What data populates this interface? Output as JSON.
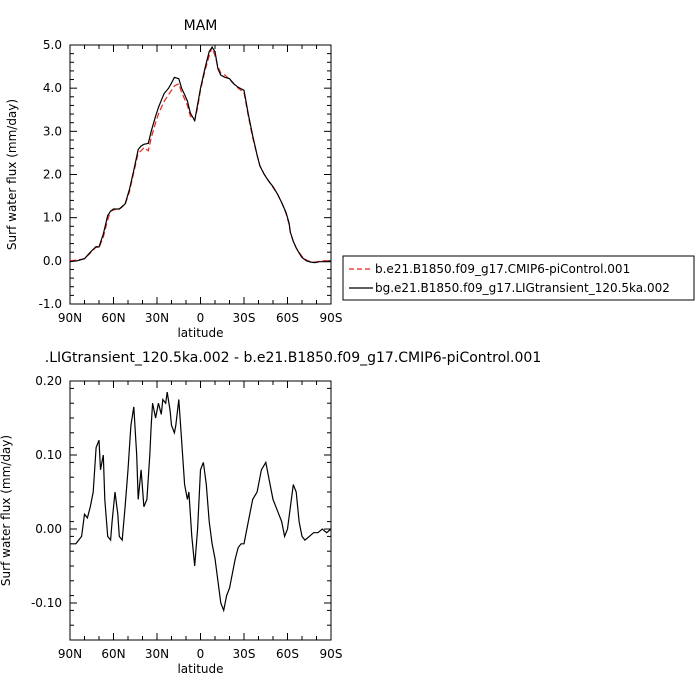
{
  "chart_data": [
    {
      "type": "line",
      "title": "MAM",
      "xlabel": "latitude",
      "ylabel": "Surf water flux (mm/day)",
      "xlim": [
        90,
        -90
      ],
      "ylim": [
        -1.0,
        5.0
      ],
      "xticks": [
        {
          "value": 90,
          "label": "90N"
        },
        {
          "value": 60,
          "label": "60N"
        },
        {
          "value": 30,
          "label": "30N"
        },
        {
          "value": 0,
          "label": "0"
        },
        {
          "value": -30,
          "label": "30S"
        },
        {
          "value": -60,
          "label": "60S"
        },
        {
          "value": -90,
          "label": "90S"
        }
      ],
      "yticks": [
        {
          "value": -1.0,
          "label": "-1.0"
        },
        {
          "value": 0.0,
          "label": "0.0"
        },
        {
          "value": 1.0,
          "label": "1.0"
        },
        {
          "value": 2.0,
          "label": "2.0"
        },
        {
          "value": 3.0,
          "label": "3.0"
        },
        {
          "value": 4.0,
          "label": "4.0"
        },
        {
          "value": 5.0,
          "label": "5.0"
        }
      ],
      "legend": "right",
      "series": [
        {
          "name": "b.e21.B1850.f09_g17.CMIP6-piControl.001",
          "color": "#e8231c",
          "dash": true,
          "x": [
            90,
            85,
            80,
            76,
            72,
            70,
            67,
            64,
            62,
            60,
            56,
            52,
            49,
            46,
            43,
            41,
            39,
            36,
            34,
            31,
            29,
            27,
            25,
            22,
            20,
            18,
            15,
            13,
            11,
            9,
            7,
            4,
            2,
            0,
            -3,
            -6,
            -8,
            -10,
            -12,
            -14,
            -17,
            -20,
            -23,
            -26,
            -30,
            -33,
            -36,
            -39,
            -41,
            -44,
            -47,
            -50,
            -53,
            -56,
            -59,
            -61,
            -62,
            -64,
            -66,
            -68,
            -70,
            -73,
            -76,
            -79,
            -82,
            -85,
            -88,
            -90
          ],
          "y": [
            0.0,
            0.02,
            0.05,
            0.18,
            0.32,
            0.3,
            0.55,
            0.95,
            1.15,
            1.18,
            1.2,
            1.3,
            1.6,
            2.05,
            2.5,
            2.55,
            2.62,
            2.55,
            2.85,
            3.2,
            3.4,
            3.55,
            3.7,
            3.85,
            3.95,
            4.05,
            4.1,
            3.9,
            3.75,
            3.6,
            3.35,
            3.25,
            3.55,
            3.95,
            4.4,
            4.75,
            4.95,
            4.75,
            4.5,
            4.35,
            4.3,
            4.2,
            4.1,
            4.0,
            3.9,
            3.35,
            2.85,
            2.45,
            2.2,
            2.0,
            1.85,
            1.7,
            1.55,
            1.35,
            1.1,
            0.85,
            0.65,
            0.45,
            0.3,
            0.2,
            0.1,
            0.02,
            -0.02,
            -0.03,
            -0.01,
            0.0,
            0.0,
            0.0
          ]
        },
        {
          "name": "bg.e21.B1850.f09_g17.LIGtransient_120.5ka.002",
          "color": "#000000",
          "dash": false,
          "x": [
            90,
            85,
            80,
            76,
            72,
            70,
            67,
            64,
            62,
            60,
            56,
            52,
            49,
            46,
            43,
            41,
            39,
            36,
            34,
            31,
            29,
            27,
            25,
            22,
            20,
            18,
            15,
            13,
            11,
            9,
            7,
            4,
            2,
            0,
            -3,
            -6,
            -8,
            -10,
            -12,
            -14,
            -17,
            -20,
            -23,
            -26,
            -30,
            -33,
            -36,
            -39,
            -41,
            -44,
            -47,
            -50,
            -53,
            -56,
            -59,
            -61,
            -62,
            -64,
            -66,
            -68,
            -70,
            -73,
            -76,
            -79,
            -82,
            -85,
            -88,
            -90
          ],
          "y": [
            -0.02,
            0.0,
            0.05,
            0.2,
            0.33,
            0.32,
            0.62,
            1.05,
            1.15,
            1.2,
            1.2,
            1.32,
            1.65,
            2.1,
            2.58,
            2.66,
            2.7,
            2.72,
            3.0,
            3.35,
            3.55,
            3.72,
            3.88,
            4.0,
            4.12,
            4.25,
            4.22,
            4.0,
            3.85,
            3.7,
            3.42,
            3.25,
            3.62,
            4.0,
            4.45,
            4.85,
            4.95,
            4.85,
            4.45,
            4.3,
            4.25,
            4.22,
            4.1,
            4.02,
            3.95,
            3.4,
            2.9,
            2.45,
            2.2,
            2.0,
            1.85,
            1.72,
            1.55,
            1.35,
            1.12,
            0.88,
            0.66,
            0.45,
            0.3,
            0.18,
            0.08,
            0.0,
            -0.03,
            -0.04,
            -0.02,
            -0.02,
            -0.02,
            -0.02
          ]
        }
      ]
    },
    {
      "type": "line",
      "title": ".LIGtransient_120.5ka.002 - b.e21.B1850.f09_g17.CMIP6-piControl.001",
      "xlabel": "latitude",
      "ylabel": "Surf water flux (mm/day)",
      "xlim": [
        90,
        -90
      ],
      "ylim": [
        -0.15,
        0.2
      ],
      "xticks": [
        {
          "value": 90,
          "label": "90N"
        },
        {
          "value": 60,
          "label": "60N"
        },
        {
          "value": 30,
          "label": "30N"
        },
        {
          "value": 0,
          "label": "0"
        },
        {
          "value": -30,
          "label": "30S"
        },
        {
          "value": -60,
          "label": "60S"
        },
        {
          "value": -90,
          "label": "90S"
        }
      ],
      "yticks": [
        {
          "value": -0.1,
          "label": "-0.10"
        },
        {
          "value": 0.0,
          "label": "0.00"
        },
        {
          "value": 0.1,
          "label": "0.10"
        },
        {
          "value": 0.2,
          "label": "0.20"
        }
      ],
      "series": [
        {
          "color": "#000000",
          "dash": false,
          "x": [
            90,
            86,
            82,
            80,
            78,
            76,
            74,
            72,
            70,
            69,
            67,
            66,
            64,
            62,
            61,
            59,
            57,
            56,
            54,
            52,
            50,
            48,
            46,
            44,
            43,
            41,
            39,
            37,
            35,
            34,
            33,
            31,
            30,
            29,
            27,
            26,
            24,
            23,
            21,
            20,
            18,
            17,
            15,
            13,
            11,
            9,
            8,
            6,
            4,
            2,
            0,
            -2,
            -4,
            -6,
            -8,
            -10,
            -12,
            -14,
            -16,
            -18,
            -20,
            -22,
            -24,
            -26,
            -28,
            -30,
            -33,
            -36,
            -39,
            -42,
            -45,
            -48,
            -50,
            -52,
            -54,
            -56,
            -58,
            -60,
            -62,
            -64,
            -66,
            -68,
            -70,
            -72,
            -75,
            -78,
            -81,
            -84,
            -87,
            -90
          ],
          "y": [
            -0.02,
            -0.02,
            -0.01,
            0.02,
            0.015,
            0.03,
            0.05,
            0.11,
            0.12,
            0.08,
            0.1,
            0.04,
            -0.01,
            -0.015,
            0.01,
            0.05,
            0.02,
            -0.01,
            -0.015,
            0.03,
            0.08,
            0.14,
            0.165,
            0.1,
            0.04,
            0.08,
            0.03,
            0.04,
            0.1,
            0.14,
            0.17,
            0.15,
            0.16,
            0.17,
            0.155,
            0.175,
            0.17,
            0.185,
            0.16,
            0.14,
            0.13,
            0.14,
            0.175,
            0.12,
            0.06,
            0.04,
            0.05,
            -0.01,
            -0.05,
            0.0,
            0.08,
            0.09,
            0.06,
            0.01,
            -0.02,
            -0.04,
            -0.07,
            -0.1,
            -0.11,
            -0.09,
            -0.08,
            -0.06,
            -0.04,
            -0.025,
            -0.02,
            -0.02,
            0.01,
            0.04,
            0.05,
            0.08,
            0.09,
            0.06,
            0.04,
            0.03,
            0.02,
            0.01,
            -0.01,
            0.0,
            0.03,
            0.06,
            0.05,
            0.01,
            -0.01,
            -0.015,
            -0.01,
            -0.005,
            -0.005,
            0.0,
            -0.005,
            0.0
          ]
        }
      ]
    }
  ]
}
